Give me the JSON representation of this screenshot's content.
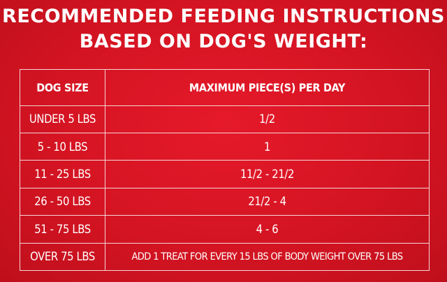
{
  "heading": {
    "line1": "RECOMMENDED FEEDING INSTRUCTIONS",
    "line2": "BASED ON DOG'S WEIGHT:"
  },
  "table": {
    "columns": [
      "DOG SIZE",
      "MAXIMUM PIECE(S) PER DAY"
    ],
    "rows": [
      {
        "size": "UNDER 5 LBS",
        "max": "1/2"
      },
      {
        "size": "5 - 10 LBS",
        "max": "1"
      },
      {
        "size": "11 - 25 LBS",
        "max": "11/2 - 21/2"
      },
      {
        "size": "26 - 50 LBS",
        "max": "21/2 - 4"
      },
      {
        "size": "51 - 75 LBS",
        "max": "4 - 6"
      },
      {
        "size": "OVER 75 LBS",
        "max": "ADD 1 TREAT FOR EVERY 15 LBS OF BODY WEIGHT OVER 75 LBS"
      }
    ]
  },
  "colors": {
    "background": "#d41422",
    "text": "#ffffff",
    "border": "#f5d6d8"
  }
}
